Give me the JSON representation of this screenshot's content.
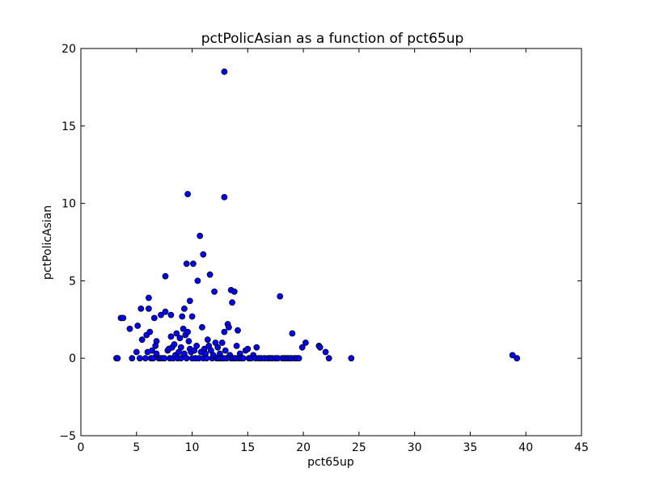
{
  "chart_data": {
    "type": "scatter",
    "title": "pctPolicAsian as a function of pct65up",
    "xlabel": "pct65up",
    "ylabel": "pctPolicAsian",
    "xlim": [
      0,
      45
    ],
    "ylim": [
      -5,
      20
    ],
    "xticks": [
      0,
      5,
      10,
      15,
      20,
      25,
      30,
      35,
      40,
      45
    ],
    "yticks": [
      -5,
      0,
      5,
      10,
      15,
      20
    ],
    "xtick_labels": [
      "0",
      "5",
      "10",
      "15",
      "20",
      "25",
      "30",
      "35",
      "40",
      "45"
    ],
    "ytick_labels": [
      "−5",
      "0",
      "5",
      "10",
      "15",
      "20"
    ],
    "grid": false,
    "marker_color": "#0000ff",
    "marker_edge_color": "#000000",
    "series": [
      {
        "points": [
          [
            3.2,
            0
          ],
          [
            3.3,
            0
          ],
          [
            3.6,
            2.6
          ],
          [
            3.8,
            2.6
          ],
          [
            4.4,
            1.9
          ],
          [
            4.6,
            0
          ],
          [
            5.0,
            0.4
          ],
          [
            5.1,
            2.1
          ],
          [
            5.3,
            0
          ],
          [
            5.4,
            3.2
          ],
          [
            5.5,
            1.2
          ],
          [
            5.8,
            0
          ],
          [
            5.9,
            1.5
          ],
          [
            6.0,
            0.4
          ],
          [
            6.1,
            3.2
          ],
          [
            6.1,
            3.9
          ],
          [
            6.2,
            1.7
          ],
          [
            6.3,
            0
          ],
          [
            6.4,
            0.5
          ],
          [
            6.5,
            0
          ],
          [
            6.6,
            2.6
          ],
          [
            6.7,
            0.8
          ],
          [
            6.8,
            1.1
          ],
          [
            6.8,
            0.3
          ],
          [
            7.0,
            0
          ],
          [
            7.1,
            0
          ],
          [
            7.2,
            2.8
          ],
          [
            7.3,
            0
          ],
          [
            7.5,
            0
          ],
          [
            7.6,
            3.0
          ],
          [
            7.6,
            5.3
          ],
          [
            7.8,
            0.5
          ],
          [
            7.9,
            0.6
          ],
          [
            8.0,
            0
          ],
          [
            8.1,
            1.4
          ],
          [
            8.1,
            2.8
          ],
          [
            8.2,
            0.7
          ],
          [
            8.3,
            0
          ],
          [
            8.4,
            0.9
          ],
          [
            8.5,
            0.2
          ],
          [
            8.6,
            1.6
          ],
          [
            8.7,
            0
          ],
          [
            8.8,
            0.4
          ],
          [
            8.9,
            1.3
          ],
          [
            9.0,
            0
          ],
          [
            9.0,
            0.7
          ],
          [
            9.1,
            2.7
          ],
          [
            9.2,
            1.9
          ],
          [
            9.3,
            0.3
          ],
          [
            9.3,
            3.2
          ],
          [
            9.4,
            1.5
          ],
          [
            9.5,
            0
          ],
          [
            9.5,
            6.1
          ],
          [
            9.6,
            10.6
          ],
          [
            9.6,
            1.7
          ],
          [
            9.7,
            1.1
          ],
          [
            9.8,
            3.7
          ],
          [
            9.8,
            0.6
          ],
          [
            9.9,
            0.4
          ],
          [
            10.0,
            0
          ],
          [
            10.0,
            2.7
          ],
          [
            10.1,
            6.1
          ],
          [
            10.2,
            0.5
          ],
          [
            10.3,
            0
          ],
          [
            10.4,
            0.8
          ],
          [
            10.5,
            5.0
          ],
          [
            10.6,
            0
          ],
          [
            10.7,
            7.9
          ],
          [
            10.8,
            0.4
          ],
          [
            10.9,
            2.0
          ],
          [
            11.0,
            6.7
          ],
          [
            11.0,
            0
          ],
          [
            11.1,
            0.6
          ],
          [
            11.2,
            0.3
          ],
          [
            11.3,
            0
          ],
          [
            11.4,
            1.2
          ],
          [
            11.5,
            0.8
          ],
          [
            11.6,
            5.4
          ],
          [
            11.7,
            0.5
          ],
          [
            11.8,
            0
          ],
          [
            11.9,
            0.2
          ],
          [
            12.0,
            4.3
          ],
          [
            12.1,
            1.0
          ],
          [
            12.2,
            0
          ],
          [
            12.3,
            0.7
          ],
          [
            12.4,
            0
          ],
          [
            12.5,
            0.3
          ],
          [
            12.6,
            0
          ],
          [
            12.7,
            1.0
          ],
          [
            12.8,
            0
          ],
          [
            12.9,
            18.5
          ],
          [
            12.9,
            10.4
          ],
          [
            12.9,
            1.7
          ],
          [
            13.0,
            0.5
          ],
          [
            13.1,
            0
          ],
          [
            13.2,
            2.2
          ],
          [
            13.3,
            2.0
          ],
          [
            13.4,
            0.2
          ],
          [
            13.5,
            0
          ],
          [
            13.5,
            4.4
          ],
          [
            13.6,
            3.6
          ],
          [
            13.7,
            0
          ],
          [
            13.8,
            4.3
          ],
          [
            13.9,
            0
          ],
          [
            14.0,
            0.8
          ],
          [
            14.1,
            1.8
          ],
          [
            14.2,
            0
          ],
          [
            14.3,
            0.3
          ],
          [
            14.4,
            0
          ],
          [
            14.6,
            0
          ],
          [
            14.8,
            0.5
          ],
          [
            15.0,
            0.6
          ],
          [
            15.1,
            0
          ],
          [
            15.3,
            0
          ],
          [
            15.5,
            0.2
          ],
          [
            15.7,
            0
          ],
          [
            15.8,
            0.7
          ],
          [
            16.0,
            0
          ],
          [
            16.2,
            0
          ],
          [
            16.5,
            0
          ],
          [
            16.8,
            0
          ],
          [
            17.0,
            0
          ],
          [
            17.2,
            0
          ],
          [
            17.5,
            0
          ],
          [
            17.7,
            0
          ],
          [
            17.9,
            4.0
          ],
          [
            18.1,
            0
          ],
          [
            18.3,
            0
          ],
          [
            18.5,
            0
          ],
          [
            18.7,
            0
          ],
          [
            18.9,
            0
          ],
          [
            19.0,
            1.6
          ],
          [
            19.2,
            0
          ],
          [
            19.4,
            0
          ],
          [
            19.6,
            0
          ],
          [
            19.9,
            0.7
          ],
          [
            20.2,
            1.0
          ],
          [
            21.4,
            0.8
          ],
          [
            21.5,
            0.7
          ],
          [
            22.0,
            0.4
          ],
          [
            22.3,
            0
          ],
          [
            24.3,
            0
          ],
          [
            38.8,
            0.2
          ],
          [
            39.2,
            0
          ]
        ]
      }
    ]
  }
}
